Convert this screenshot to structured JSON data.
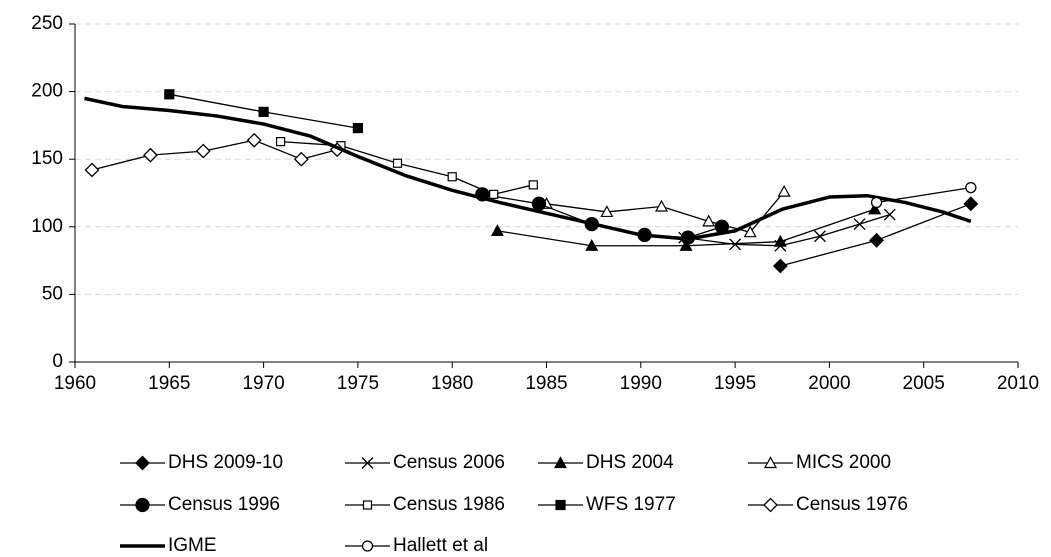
{
  "chart_data": {
    "type": "line",
    "xlim": [
      1960,
      2010
    ],
    "xticks": [
      1960,
      1965,
      1970,
      1975,
      1980,
      1985,
      1990,
      1995,
      2000,
      2005,
      2010
    ],
    "ylim": [
      0,
      250
    ],
    "yticks": [
      0,
      50,
      100,
      150,
      200,
      250
    ],
    "grid": true,
    "legend": "bottom",
    "series": [
      {
        "name": "DHS 2009-10",
        "color": "#000000",
        "marker": "diamond-filled",
        "x": [
          1997.4,
          2002.5,
          2007.5
        ],
        "values": [
          71,
          90,
          117
        ]
      },
      {
        "name": "Census 2006",
        "color": "#000000",
        "marker": "cross",
        "x": [
          1992.3,
          1995,
          1997.4,
          1999.5,
          2001.6,
          2003.2
        ],
        "values": [
          92,
          87,
          86,
          93,
          102,
          109
        ]
      },
      {
        "name": "DHS 2004",
        "color": "#000000",
        "marker": "triangle-filled",
        "x": [
          1982.4,
          1987.4,
          1992.4,
          1997.4,
          2002.4
        ],
        "values": [
          97,
          86,
          86,
          89,
          113
        ]
      },
      {
        "name": "MICS 2000",
        "color": "#000000",
        "marker": "triangle-open",
        "x": [
          1985,
          1988.2,
          1991.1,
          1993.6,
          1995.8,
          1997.6
        ],
        "values": [
          117,
          111,
          115,
          104,
          96,
          126
        ]
      },
      {
        "name": "Census 1996",
        "color": "#000000",
        "marker": "circle-filled",
        "x": [
          1981.6,
          1984.6,
          1987.4,
          1990.2,
          1992.5,
          1994.3
        ],
        "values": [
          124,
          117,
          102,
          94,
          92,
          100
        ]
      },
      {
        "name": "Census 1986",
        "color": "#000000",
        "marker": "square-open",
        "x": [
          1970.9,
          1974.1,
          1977.1,
          1980,
          1982.2,
          1984.3
        ],
        "values": [
          163,
          160,
          147,
          137,
          124,
          131
        ]
      },
      {
        "name": "WFS 1977",
        "color": "#000000",
        "marker": "square-filled",
        "x": [
          1965,
          1970,
          1975
        ],
        "values": [
          198,
          185,
          173
        ]
      },
      {
        "name": "Census 1976",
        "color": "#000000",
        "marker": "diamond-open",
        "x": [
          1960.9,
          1964,
          1966.8,
          1969.5,
          1972,
          1973.9
        ],
        "values": [
          142,
          153,
          156,
          164,
          150,
          157
        ]
      },
      {
        "name": "IGME",
        "color": "#000000",
        "marker": "none",
        "line_width": 3.5,
        "x": [
          1960.5,
          1962.5,
          1965,
          1967.5,
          1970,
          1972.5,
          1975,
          1977.5,
          1980,
          1982.5,
          1985,
          1987.5,
          1990,
          1992.5,
          1995,
          1997.5,
          2000,
          2002,
          2004,
          2006,
          2007.5
        ],
        "values": [
          195,
          189,
          186,
          182,
          176,
          167,
          152,
          138,
          127,
          118,
          110,
          102,
          94,
          91,
          97,
          113,
          122,
          123,
          118,
          111,
          104
        ]
      },
      {
        "name": "Hallett et al",
        "color": "#000000",
        "marker": "circle-open",
        "x": [
          2002.5,
          2007.5
        ],
        "values": [
          118,
          129
        ]
      }
    ]
  }
}
